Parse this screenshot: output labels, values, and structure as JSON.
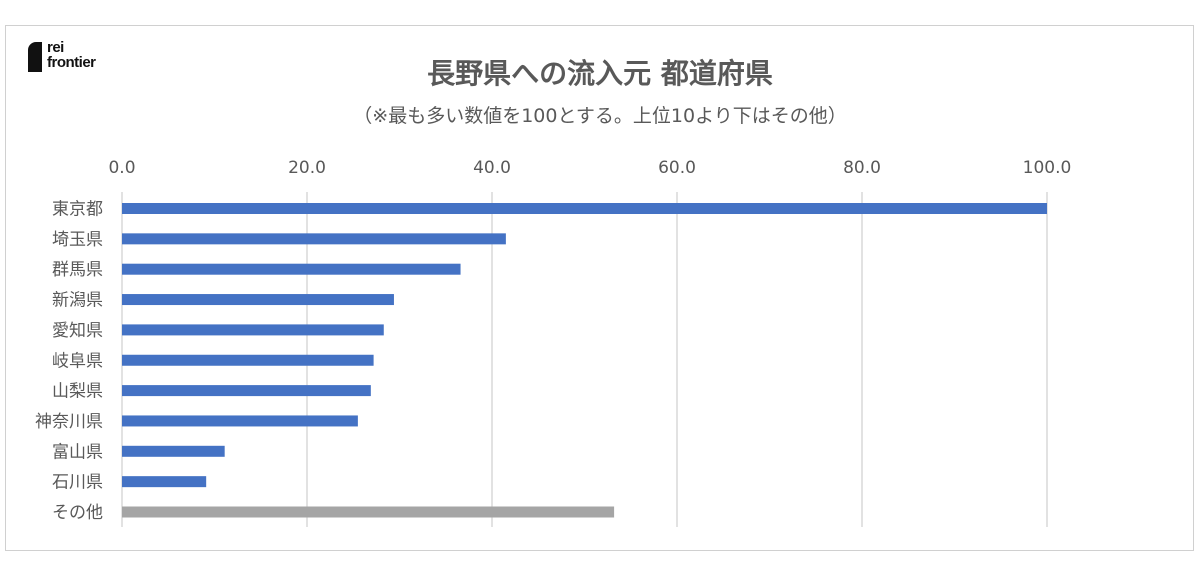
{
  "logo": {
    "line1": "rei",
    "line2": "frontier"
  },
  "chart_data": {
    "type": "bar",
    "orientation": "horizontal",
    "title": "長野県への流入元 都道府県",
    "subtitle": "（※最も多い数値を100とする。上位10より下はその他）",
    "categories": [
      "東京都",
      "埼玉県",
      "群馬県",
      "新潟県",
      "愛知県",
      "岐阜県",
      "山梨県",
      "神奈川県",
      "富山県",
      "石川県",
      "その他"
    ],
    "values": [
      100.0,
      41.5,
      36.6,
      29.4,
      28.3,
      27.2,
      26.9,
      25.5,
      11.1,
      9.1,
      53.2
    ],
    "colors": [
      "#4472C4",
      "#4472C4",
      "#4472C4",
      "#4472C4",
      "#4472C4",
      "#4472C4",
      "#4472C4",
      "#4472C4",
      "#4472C4",
      "#4472C4",
      "#A5A5A5"
    ],
    "xlim": [
      0,
      100
    ],
    "xticks": [
      "0.0",
      "20.0",
      "40.0",
      "60.0",
      "80.0",
      "100.0"
    ],
    "xlabel": "",
    "ylabel": "",
    "grid": true,
    "axis_position": "top"
  }
}
